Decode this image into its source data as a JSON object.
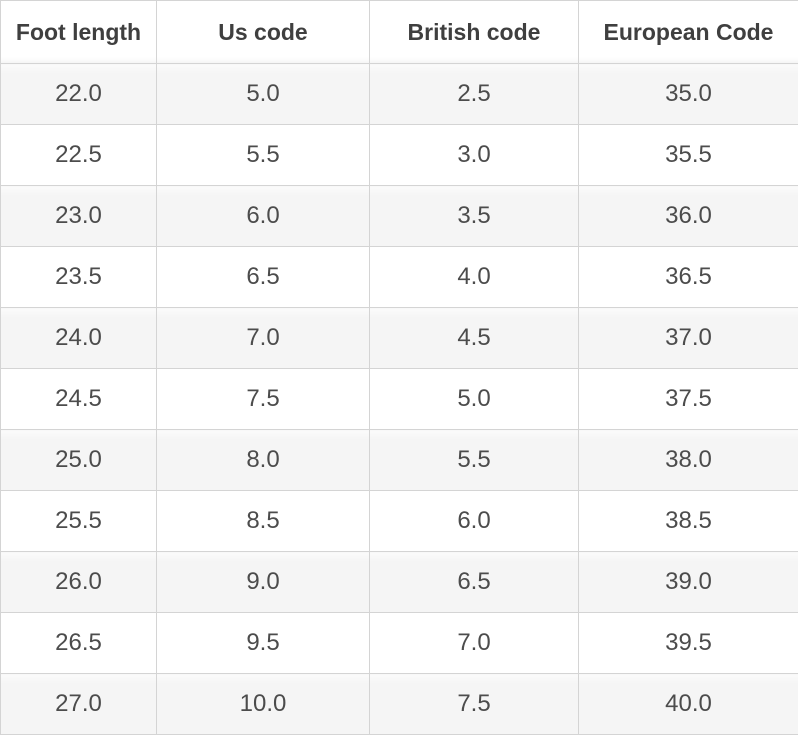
{
  "table": {
    "headers": [
      {
        "label": "Foot length"
      },
      {
        "label": "Us code"
      },
      {
        "label": "British code"
      },
      {
        "label": "European Code"
      }
    ],
    "rows": [
      [
        "22.0",
        "5.0",
        "2.5",
        "35.0"
      ],
      [
        "22.5",
        "5.5",
        "3.0",
        "35.5"
      ],
      [
        "23.0",
        "6.0",
        "3.5",
        "36.0"
      ],
      [
        "23.5",
        "6.5",
        "4.0",
        "36.5"
      ],
      [
        "24.0",
        "7.0",
        "4.5",
        "37.0"
      ],
      [
        "24.5",
        "7.5",
        "5.0",
        "37.5"
      ],
      [
        "25.0",
        "8.0",
        "5.5",
        "38.0"
      ],
      [
        "25.5",
        "8.5",
        "6.0",
        "38.5"
      ],
      [
        "26.0",
        "9.0",
        "6.5",
        "39.0"
      ],
      [
        "26.5",
        "9.5",
        "7.0",
        "39.5"
      ],
      [
        "27.0",
        "10.0",
        "7.5",
        "40.0"
      ]
    ]
  },
  "chart_data": {
    "type": "table",
    "columns": [
      "Foot length",
      "Us code",
      "British code",
      "European Code"
    ],
    "rows": [
      [
        22.0,
        5.0,
        2.5,
        35.0
      ],
      [
        22.5,
        5.5,
        3.0,
        35.5
      ],
      [
        23.0,
        6.0,
        3.5,
        36.0
      ],
      [
        23.5,
        6.5,
        4.0,
        36.5
      ],
      [
        24.0,
        7.0,
        4.5,
        37.0
      ],
      [
        24.5,
        7.5,
        5.0,
        37.5
      ],
      [
        25.0,
        8.0,
        5.5,
        38.0
      ],
      [
        25.5,
        8.5,
        6.0,
        38.5
      ],
      [
        26.0,
        9.0,
        6.5,
        39.0
      ],
      [
        26.5,
        9.5,
        7.0,
        39.5
      ],
      [
        27.0,
        10.0,
        7.5,
        40.0
      ]
    ],
    "layout_hints": {
      "striped_rows": true,
      "first_data_row_shaded": true,
      "grid": true
    }
  },
  "colors": {
    "border": "#d4d4d4",
    "row_alt_bg": "#f5f5f5",
    "row_bg": "#ffffff",
    "header_text": "#3f3f3f",
    "cell_text": "#4c4c4c"
  }
}
